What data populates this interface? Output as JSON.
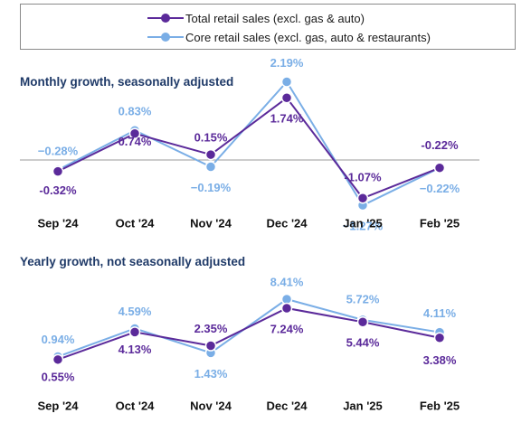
{
  "legend": {
    "total_label": "Total retail sales (excl. gas & auto)",
    "core_label": "Core retail sales (excl. gas, auto & restaurants)"
  },
  "colors": {
    "total": "#5b2a9a",
    "core": "#7aaee6",
    "zero_line": "#9a9a9a"
  },
  "chart_data": [
    {
      "type": "line",
      "title": "Monthly growth, seasonally adjusted",
      "categories": [
        "Sep '24",
        "Oct '24",
        "Nov '24",
        "Dec '24",
        "Jan '25",
        "Feb '25"
      ],
      "series": [
        {
          "name": "Total retail sales (excl. gas & auto)",
          "values": [
            -0.32,
            0.74,
            0.15,
            1.74,
            -1.07,
            -0.22
          ],
          "labels": [
            "-0.32%",
            "0.74%",
            "0.15%",
            "1.74%",
            "-1.07%",
            "-0.22%"
          ]
        },
        {
          "name": "Core retail sales (excl. gas, auto & restaurants)",
          "values": [
            -0.28,
            0.83,
            -0.19,
            2.19,
            -1.27,
            -0.22
          ],
          "labels": [
            "−0.28%",
            "0.83%",
            "−0.19%",
            "2.19%",
            "−1.27%",
            "−0.22%"
          ]
        }
      ],
      "zero_line": true,
      "legend_position": "top"
    },
    {
      "type": "line",
      "title": "Yearly growth, not seasonally adjusted",
      "categories": [
        "Sep '24",
        "Oct '24",
        "Nov '24",
        "Dec '24",
        "Jan '25",
        "Feb '25"
      ],
      "series": [
        {
          "name": "Total retail sales (excl. gas & auto)",
          "values": [
            0.55,
            4.13,
            2.35,
            7.24,
            5.44,
            3.38
          ],
          "labels": [
            "0.55%",
            "4.13%",
            "2.35%",
            "7.24%",
            "5.44%",
            "3.38%"
          ]
        },
        {
          "name": "Core retail sales (excl. gas, auto & restaurants)",
          "values": [
            0.94,
            4.59,
            1.43,
            8.41,
            5.72,
            4.11
          ],
          "labels": [
            "0.94%",
            "4.59%",
            "1.43%",
            "8.41%",
            "5.72%",
            "4.11%"
          ]
        }
      ],
      "zero_line": false,
      "legend_position": "top"
    }
  ]
}
